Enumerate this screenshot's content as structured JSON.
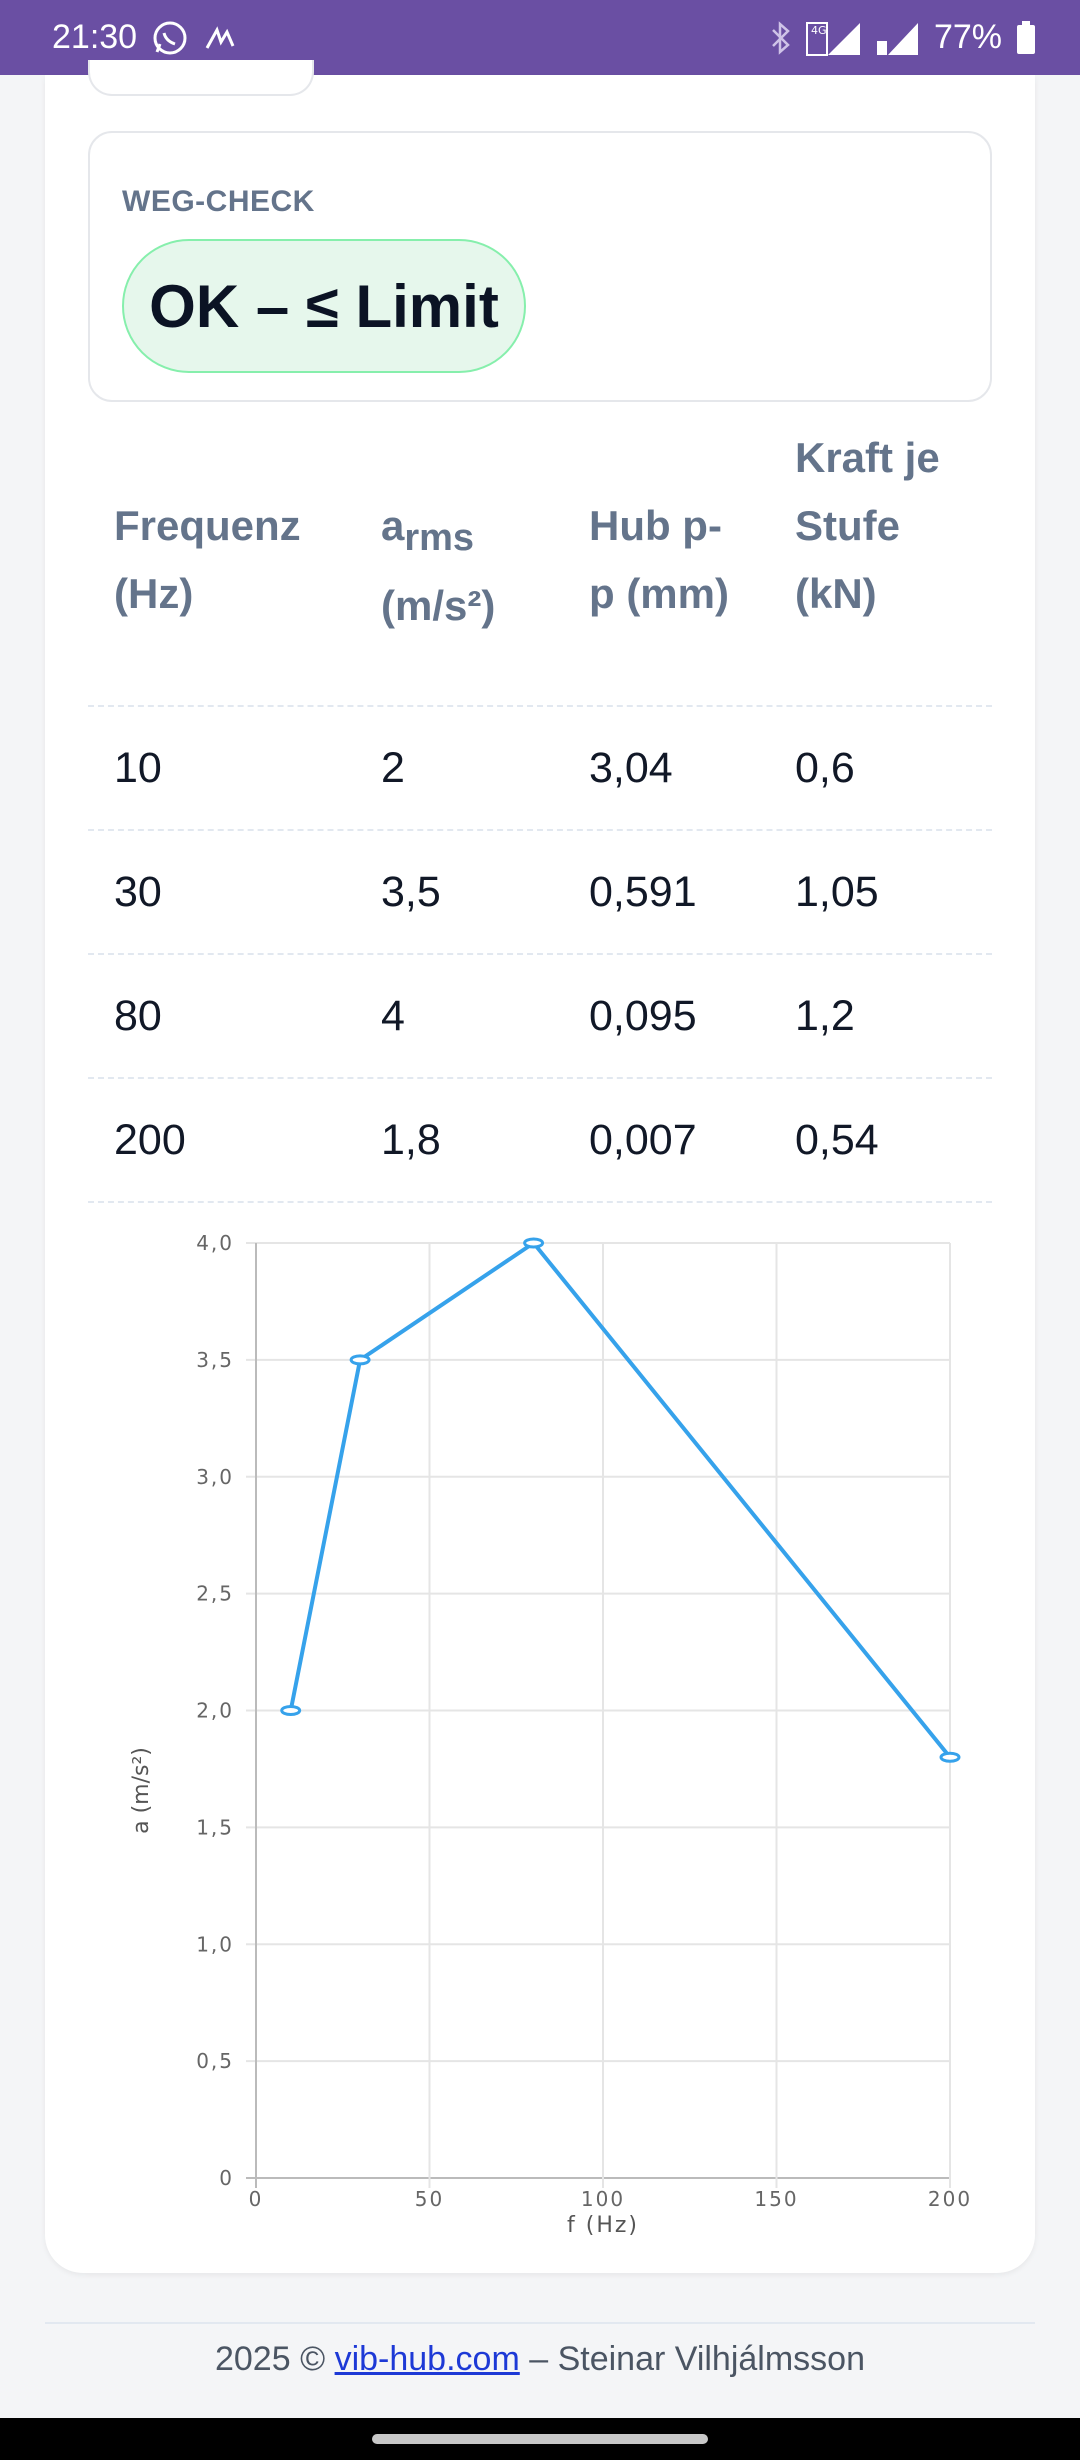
{
  "status_bar": {
    "time": "21:30",
    "battery": "77%",
    "network": "4G",
    "icons": [
      "whatsapp-icon",
      "signature-icon",
      "bluetooth-icon",
      "signal-sim1-icon",
      "signal-sim2-icon",
      "battery-icon"
    ]
  },
  "weg_check": {
    "title": "WEG-CHECK",
    "status": "OK – ≤ Limit",
    "status_color": "#e6f7ec"
  },
  "table": {
    "headers": [
      {
        "line1": "Frequenz",
        "line2": "(Hz)"
      },
      {
        "main": "a",
        "sub": "rms",
        "line2": "(m/s²)"
      },
      {
        "line1": "Hub p-",
        "line2": "p (mm)"
      },
      {
        "line1": "Kraft je",
        "line2": "Stufe",
        "line3": "(kN)"
      }
    ],
    "rows": [
      [
        "10",
        "2",
        "3,04",
        "0,6"
      ],
      [
        "30",
        "3,5",
        "0,591",
        "1,05"
      ],
      [
        "80",
        "4",
        "0,095",
        "1,2"
      ],
      [
        "200",
        "1,8",
        "0,007",
        "0,54"
      ]
    ]
  },
  "chart_data": {
    "type": "line",
    "x": [
      10,
      30,
      80,
      200
    ],
    "series": [
      {
        "values": [
          2,
          3.5,
          4,
          1.8
        ],
        "color": "#36a2eb"
      }
    ],
    "xlabel": "f (Hz)",
    "ylabel": "a (m/s²)",
    "xlim": [
      0,
      200
    ],
    "ylim": [
      0,
      4
    ],
    "xticks": [
      "0",
      "50",
      "100",
      "150",
      "200"
    ],
    "yticks": [
      "0",
      "0,5",
      "1,0",
      "1,5",
      "2,0",
      "2,5",
      "3,0",
      "3,5",
      "4,0"
    ],
    "grid": true
  },
  "footer": {
    "prefix": "2025 © ",
    "link": "vib-hub.com",
    "suffix": " – Steinar Vilhjálmsson"
  }
}
